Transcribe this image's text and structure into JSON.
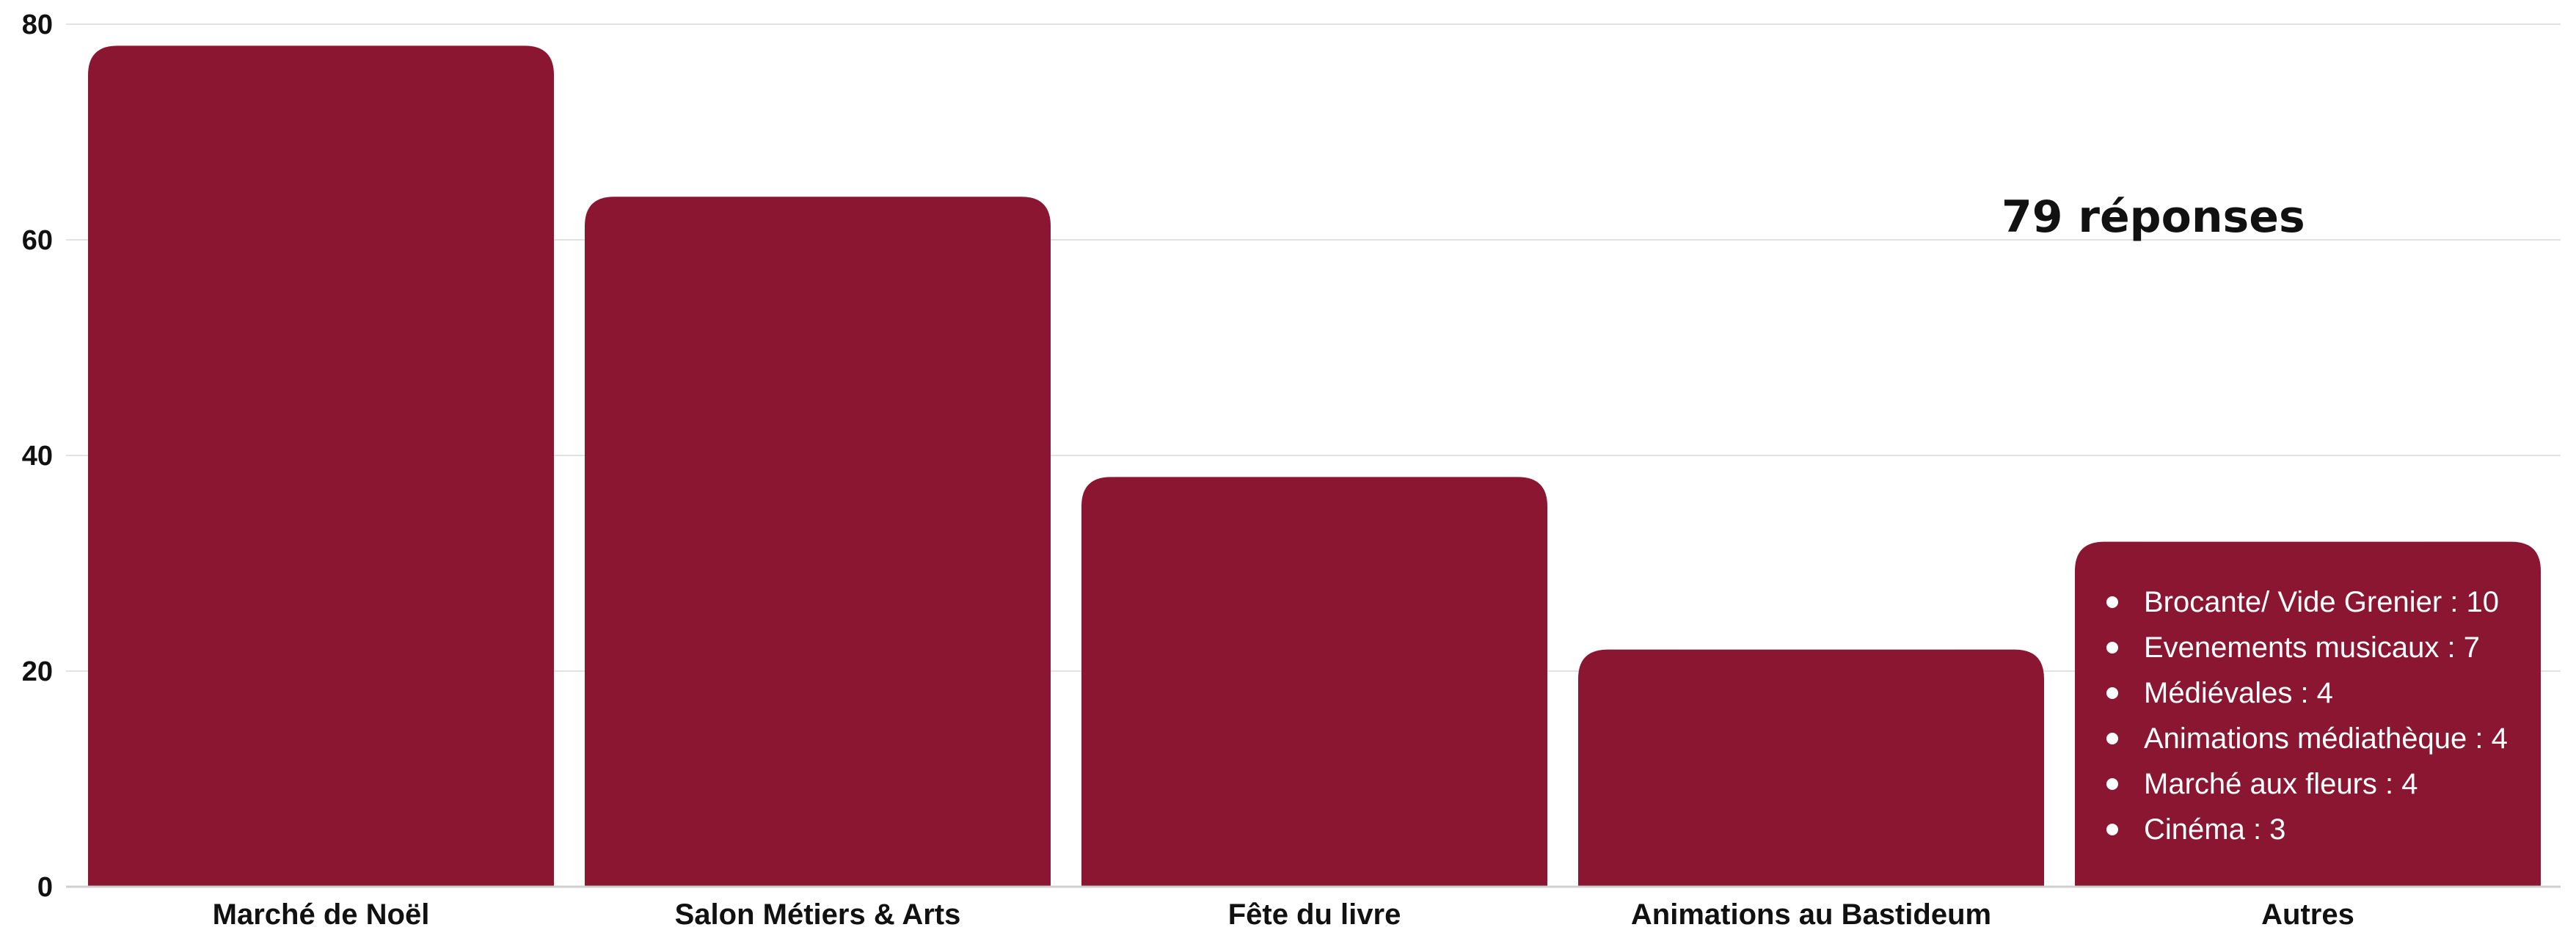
{
  "chart_data": {
    "type": "bar",
    "categories": [
      "Marché de Noël",
      "Salon Métiers & Arts",
      "Fête du livre",
      "Animations au Bastideum",
      "Autres"
    ],
    "values": [
      78,
      64,
      38,
      22,
      32
    ],
    "ylim": [
      0,
      80
    ],
    "yticks": [
      "0",
      "20",
      "40",
      "60",
      "80"
    ],
    "grid": true,
    "bar_color": "#8a1631",
    "annotation": "79 réponses",
    "autres_details": [
      "Brocante/ Vide Grenier : 10",
      "Evenements musicaux : 7",
      "Médiévales : 4",
      "Animations médiathèque : 4",
      "Marché aux fleurs : 4",
      "Cinéma : 3"
    ]
  }
}
